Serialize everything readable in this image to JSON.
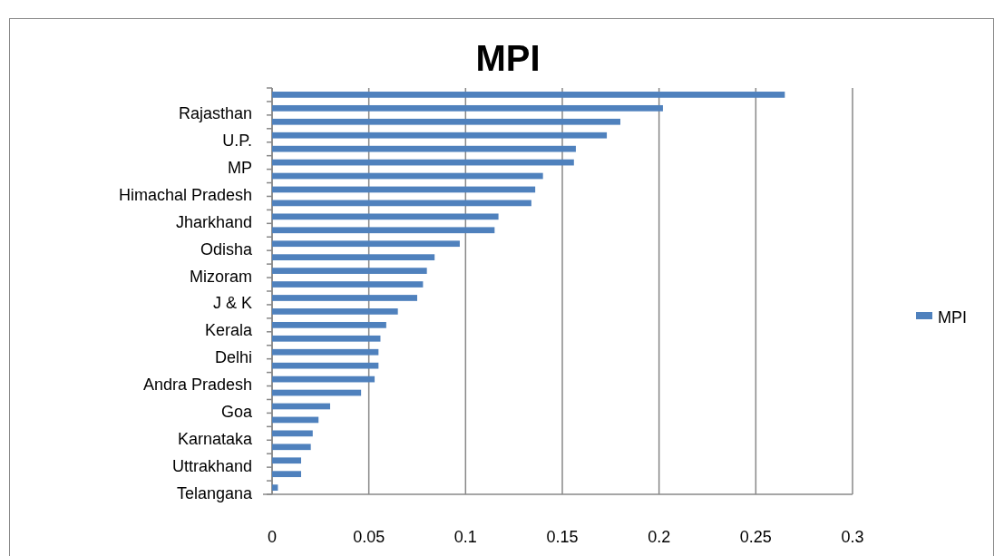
{
  "chart_data": {
    "type": "bar",
    "orientation": "horizontal",
    "title": "MPI",
    "categories": [
      null,
      "Rajasthan",
      null,
      "U.P.",
      null,
      "MP",
      null,
      "Himachal Pradesh",
      null,
      "Jharkhand",
      null,
      "Odisha",
      null,
      "Mizoram",
      null,
      "J & K",
      null,
      "Kerala",
      null,
      "Delhi",
      null,
      "Andra Pradesh",
      null,
      "Goa",
      null,
      "Karnataka",
      null,
      "Uttrakhand",
      null,
      "Telangana"
    ],
    "series": [
      {
        "name": "MPI",
        "color": "#4f81bd",
        "values": [
          0.265,
          0.202,
          0.18,
          0.173,
          0.157,
          0.156,
          0.14,
          0.136,
          0.134,
          0.117,
          0.115,
          0.097,
          0.084,
          0.08,
          0.078,
          0.075,
          0.065,
          0.059,
          0.056,
          0.055,
          0.055,
          0.053,
          0.046,
          0.03,
          0.024,
          0.021,
          0.02,
          0.015,
          0.015,
          0.003
        ]
      }
    ],
    "xlim": [
      0,
      0.3
    ],
    "xticks": [
      0,
      0.05,
      0.1,
      0.15,
      0.2,
      0.25,
      0.3
    ],
    "grid": "x",
    "legend": "right"
  }
}
